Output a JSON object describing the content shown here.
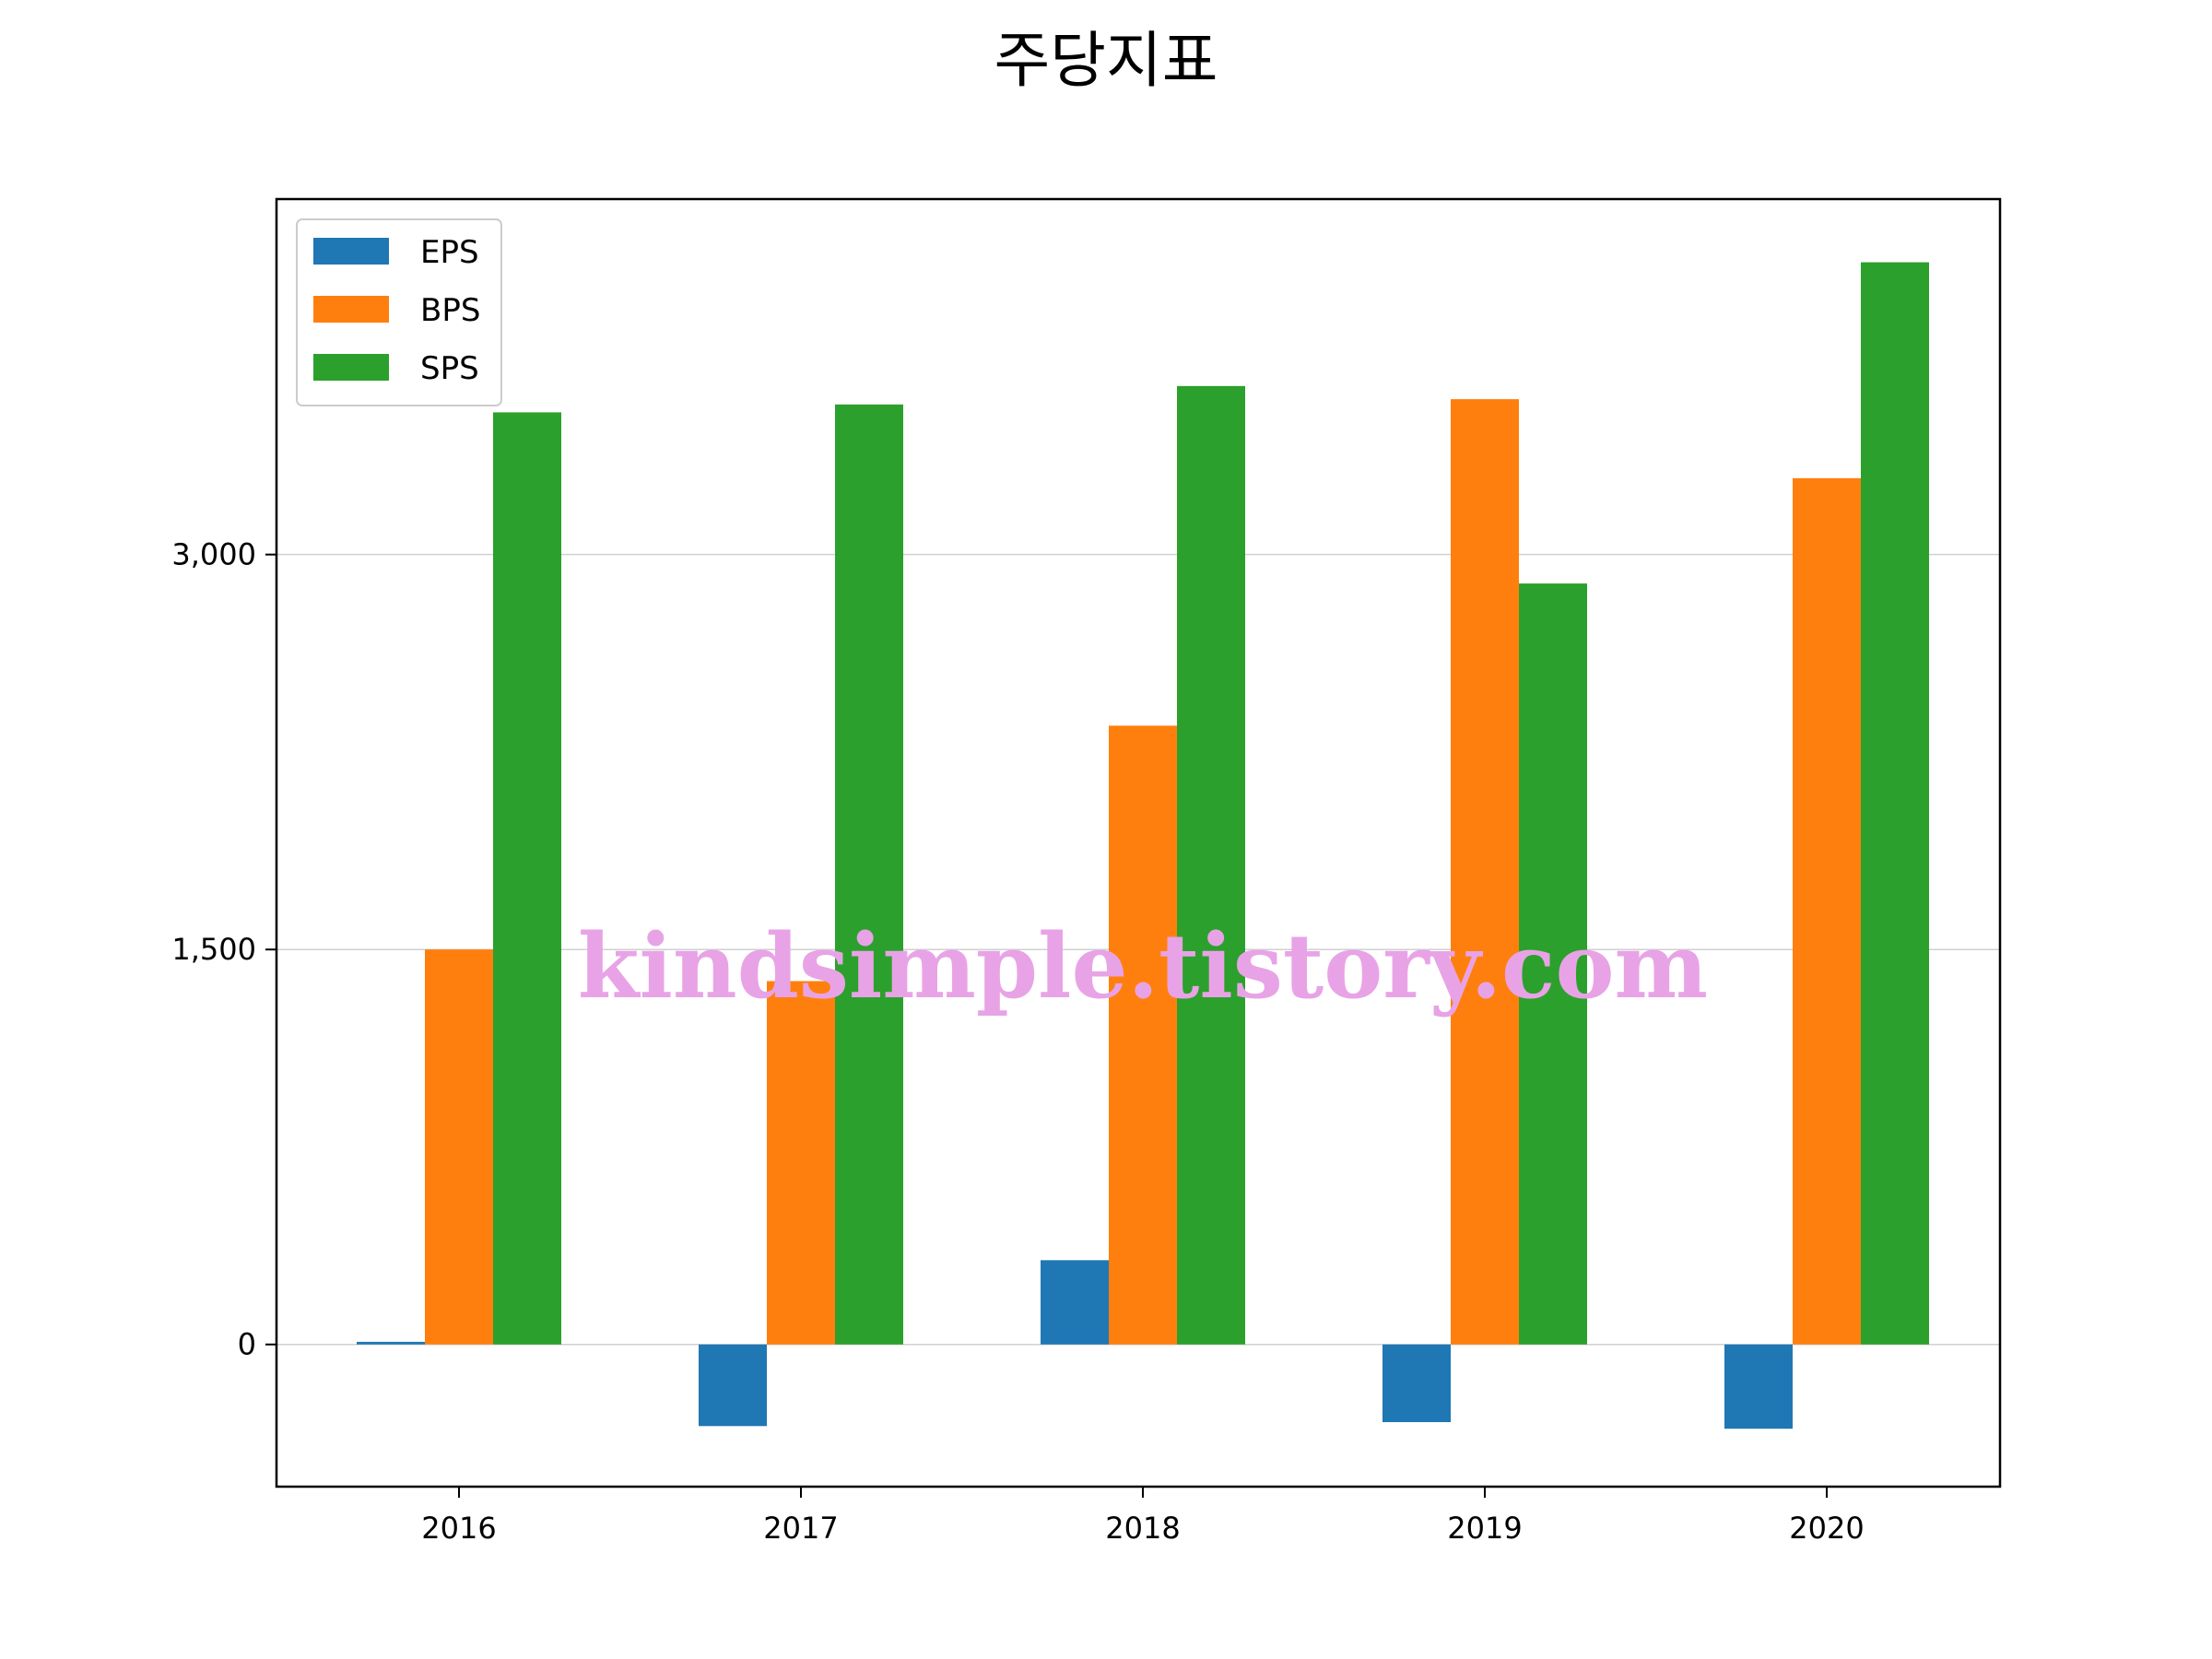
{
  "chart_data": {
    "type": "bar",
    "title": "주당지표",
    "xlabel": "",
    "ylabel": "",
    "categories": [
      "2016",
      "2017",
      "2018",
      "2019",
      "2020"
    ],
    "series": [
      {
        "name": "EPS",
        "values": [
          10,
          -310,
          320,
          -295,
          -320
        ],
        "color": "#1f77b4"
      },
      {
        "name": "BPS",
        "values": [
          1500,
          1380,
          2350,
          3590,
          3290
        ],
        "color": "#ff7f0e"
      },
      {
        "name": "SPS",
        "values": [
          3540,
          3570,
          3640,
          2890,
          4110
        ],
        "color": "#2ca02c"
      }
    ],
    "ylim": [
      -540,
      4350
    ],
    "yticks": [
      0,
      1500,
      3000
    ],
    "ytick_labels": [
      "0",
      "1,500",
      "3,000"
    ],
    "grid": "horizontal",
    "legend_position": "upper-left"
  },
  "watermark": "kindsimple.tistory.com"
}
